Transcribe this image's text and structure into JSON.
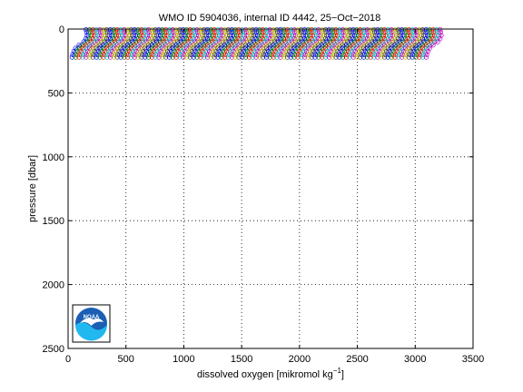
{
  "chart_data": {
    "type": "line",
    "title": "WMO ID 5904036, internal ID 4442, 25−Oct−2018",
    "xlabel": "dissolved oxygen [mikromol kg",
    "xlabel_sup": "−1",
    "xlabel_close": "]",
    "ylabel": "pressure [dbar]",
    "xlim": [
      0,
      3500
    ],
    "ylim": [
      0,
      2500
    ],
    "y_reversed": true,
    "grid": true,
    "xticks": [
      0,
      500,
      1000,
      1500,
      2000,
      2500,
      3000,
      3500
    ],
    "yticks": [
      0,
      500,
      1000,
      1500,
      2000,
      2500
    ],
    "profile_pressures": [
      5,
      25,
      50,
      75,
      100,
      125,
      150,
      175,
      200,
      220
    ],
    "profile_shape_offsets": [
      20,
      25,
      30,
      20,
      0,
      -40,
      -70,
      -85,
      -95,
      -100
    ],
    "profile_offsets": [
      135,
      165,
      195,
      225,
      255,
      285,
      315,
      345,
      375,
      405,
      435,
      465,
      495,
      525,
      555,
      585,
      615,
      645,
      675,
      705,
      735,
      765,
      795,
      825,
      855,
      885,
      915,
      945,
      975,
      1005,
      1035,
      1065,
      1095,
      1125,
      1155,
      1185,
      1215,
      1245,
      1275,
      1305,
      1335,
      1365,
      1395,
      1425,
      1455,
      1485,
      1515,
      1545,
      1575,
      1605,
      1635,
      1665,
      1695,
      1725,
      1755,
      1785,
      1815,
      1845,
      1875,
      1905,
      1935,
      1965,
      1995,
      2025,
      2055,
      2085,
      2115,
      2145,
      2175,
      2205,
      2235,
      2265,
      2295,
      2325,
      2355,
      2385,
      2415,
      2445,
      2475,
      2505,
      2535,
      2565,
      2595,
      2625,
      2655,
      2685,
      2715,
      2745,
      2775,
      2805,
      2835,
      2865,
      2895,
      2925,
      2955,
      2985,
      3015,
      3045,
      3075,
      3105,
      3135,
      3165,
      3195
    ],
    "series_colors": [
      "#0000ff",
      "#008000",
      "#ff0000",
      "#00bfbf",
      "#bf00bf",
      "#bfbf00",
      "#404040"
    ]
  },
  "logo": {
    "text": "NOAA"
  }
}
